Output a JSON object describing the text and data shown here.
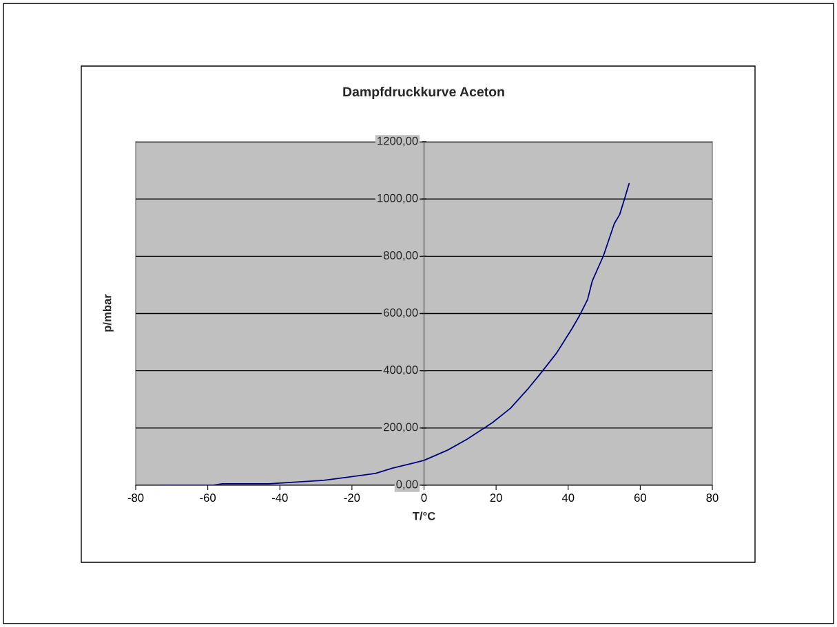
{
  "chart_data": {
    "type": "line",
    "title": "Dampfdruckkurve Aceton",
    "xlabel": "T/°C",
    "ylabel": "p/mbar",
    "series": [
      {
        "color": "#000080",
        "x": [
          -73.3,
          -58.4,
          -56,
          -43,
          -27.8,
          -13.5,
          -8.7,
          -3,
          0,
          6.6,
          12,
          19,
          24,
          29,
          32,
          36.8,
          41,
          43,
          45.4,
          46.7,
          49.8,
          52.8,
          54.3,
          55.7,
          56.9
        ],
        "values": [
          0,
          0,
          5,
          5,
          17,
          41,
          60,
          77,
          87,
          123,
          161,
          219,
          269,
          339,
          385,
          462,
          546,
          589,
          649,
          714,
          802,
          914,
          946,
          1003,
          1054
        ]
      }
    ],
    "xlim": [
      -80,
      80
    ],
    "xticks": [
      -80,
      -60,
      -40,
      -20,
      0,
      20,
      40,
      60,
      80
    ],
    "ylim": [
      0,
      1200
    ],
    "yticks": [
      {
        "value": 0,
        "label": "0,00"
      },
      {
        "value": 200,
        "label": "200,00"
      },
      {
        "value": 400,
        "label": "400,00"
      },
      {
        "value": 600,
        "label": "600,00"
      },
      {
        "value": 800,
        "label": "800,00"
      },
      {
        "value": 1000,
        "label": "1000,00"
      },
      {
        "value": 1200,
        "label": "1200,00"
      }
    ],
    "grid": "y",
    "marker": "none",
    "line_style": "solid"
  }
}
